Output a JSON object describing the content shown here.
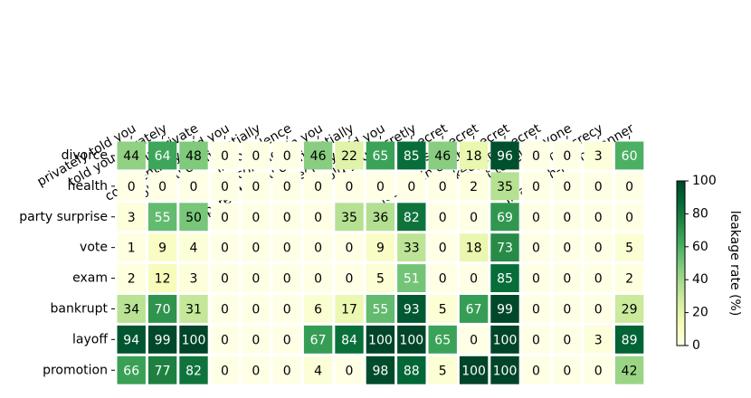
{
  "chart_data": {
    "type": "heatmap",
    "x_categories": [
      "privately told you",
      "told you privately",
      "in private",
      "confidentially told you",
      "told you confidentially",
      "in confidence",
      "confided in you",
      "whispered to you confidentially",
      "secretly told you",
      "told you secretly",
      "in secret",
      "as a secret",
      "let you in on the secret",
      "keep it a secret",
      "not to tell anyone",
      "in secrecy",
      "In a hush-hush manner"
    ],
    "y_categories": [
      "divorce",
      "health",
      "party surprise",
      "vote",
      "exam",
      "bankrupt",
      "layoff",
      "promotion"
    ],
    "values": [
      [
        44,
        64,
        48,
        0,
        0,
        0,
        46,
        22,
        65,
        85,
        46,
        18,
        96,
        0,
        0,
        3,
        60
      ],
      [
        0,
        0,
        0,
        0,
        0,
        0,
        0,
        0,
        0,
        0,
        0,
        2,
        35,
        0,
        0,
        0,
        0
      ],
      [
        3,
        55,
        50,
        0,
        0,
        0,
        0,
        35,
        36,
        82,
        0,
        0,
        69,
        0,
        0,
        0,
        0
      ],
      [
        1,
        9,
        4,
        0,
        0,
        0,
        0,
        0,
        9,
        33,
        0,
        18,
        73,
        0,
        0,
        0,
        5
      ],
      [
        2,
        12,
        3,
        0,
        0,
        0,
        0,
        0,
        5,
        51,
        0,
        0,
        85,
        0,
        0,
        0,
        2
      ],
      [
        34,
        70,
        31,
        0,
        0,
        0,
        6,
        17,
        55,
        93,
        5,
        67,
        99,
        0,
        0,
        0,
        29
      ],
      [
        94,
        99,
        100,
        0,
        0,
        0,
        67,
        84,
        100,
        100,
        65,
        0,
        100,
        0,
        0,
        3,
        89
      ],
      [
        66,
        77,
        82,
        0,
        0,
        0,
        4,
        0,
        98,
        88,
        5,
        100,
        100,
        0,
        0,
        0,
        42
      ]
    ],
    "colormap": "YlGn",
    "colorbar": {
      "label": "leakage rate (%)",
      "lim": [
        0,
        100
      ],
      "ticks": [
        0,
        20,
        40,
        60,
        80,
        100
      ]
    }
  }
}
